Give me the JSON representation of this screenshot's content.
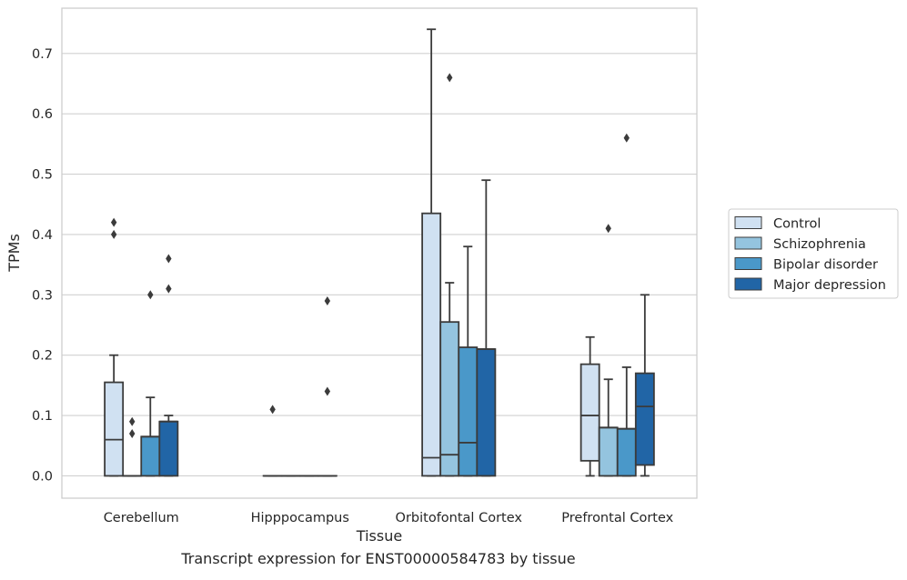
{
  "caption": "Transcript expression for ENST00000584783 by tissue",
  "chart_data": {
    "type": "box",
    "xlabel": "Tissue",
    "ylabel": "TPMs",
    "ylim": [
      -0.037,
      0.775
    ],
    "yticks": [
      0.0,
      0.1,
      0.2,
      0.3,
      0.4,
      0.5,
      0.6,
      0.7
    ],
    "ytick_labels": [
      "0.0",
      "0.1",
      "0.2",
      "0.3",
      "0.4",
      "0.5",
      "0.6",
      "0.7"
    ],
    "categories": [
      "Cerebellum",
      "Hipppocampus",
      "Orbitofontal Cortex",
      "Prefrontal Cortex"
    ],
    "grid": "horizontal",
    "legend_position": "right",
    "series": [
      {
        "name": "Control",
        "color": "#d0e1f2",
        "boxes": [
          {
            "whislo": 0.0,
            "q1": 0.0,
            "med": 0.06,
            "q3": 0.155,
            "whishi": 0.2,
            "fliers": [
              0.4,
              0.42
            ]
          },
          {
            "whislo": 0.0,
            "q1": 0.0,
            "med": 0.0,
            "q3": 0.0,
            "whishi": 0.0,
            "fliers": [
              0.11
            ]
          },
          {
            "whislo": 0.0,
            "q1": 0.0,
            "med": 0.03,
            "q3": 0.435,
            "whishi": 0.74,
            "fliers": []
          },
          {
            "whislo": 0.0,
            "q1": 0.025,
            "med": 0.1,
            "q3": 0.185,
            "whishi": 0.23,
            "fliers": []
          }
        ]
      },
      {
        "name": "Schizophrenia",
        "color": "#94c4df",
        "boxes": [
          {
            "whislo": 0.0,
            "q1": 0.0,
            "med": 0.0,
            "q3": 0.0,
            "whishi": 0.0,
            "fliers": [
              0.07,
              0.09
            ]
          },
          {
            "whislo": 0.0,
            "q1": 0.0,
            "med": 0.0,
            "q3": 0.0,
            "whishi": 0.0,
            "fliers": []
          },
          {
            "whislo": 0.0,
            "q1": 0.0,
            "med": 0.035,
            "q3": 0.255,
            "whishi": 0.32,
            "fliers": [
              0.66
            ]
          },
          {
            "whislo": 0.0,
            "q1": 0.0,
            "med": 0.08,
            "q3": 0.08,
            "whishi": 0.16,
            "fliers": [
              0.41
            ]
          }
        ]
      },
      {
        "name": "Bipolar disorder",
        "color": "#4a98c9",
        "boxes": [
          {
            "whislo": 0.0,
            "q1": 0.0,
            "med": 0.065,
            "q3": 0.065,
            "whishi": 0.13,
            "fliers": [
              0.3
            ]
          },
          {
            "whislo": 0.0,
            "q1": 0.0,
            "med": 0.0,
            "q3": 0.0,
            "whishi": 0.0,
            "fliers": []
          },
          {
            "whislo": 0.0,
            "q1": 0.0,
            "med": 0.055,
            "q3": 0.213,
            "whishi": 0.38,
            "fliers": []
          },
          {
            "whislo": 0.0,
            "q1": 0.0,
            "med": 0.078,
            "q3": 0.078,
            "whishi": 0.18,
            "fliers": [
              0.56
            ]
          }
        ]
      },
      {
        "name": "Major depression",
        "color": "#2165a6",
        "boxes": [
          {
            "whislo": 0.0,
            "q1": 0.0,
            "med": 0.09,
            "q3": 0.09,
            "whishi": 0.1,
            "fliers": [
              0.31,
              0.36
            ]
          },
          {
            "whislo": 0.0,
            "q1": 0.0,
            "med": 0.0,
            "q3": 0.0,
            "whishi": 0.0,
            "fliers": [
              0.14,
              0.29
            ]
          },
          {
            "whislo": 0.0,
            "q1": 0.0,
            "med": 0.21,
            "q3": 0.21,
            "whishi": 0.49,
            "fliers": []
          },
          {
            "whislo": 0.0,
            "q1": 0.018,
            "med": 0.115,
            "q3": 0.17,
            "whishi": 0.3,
            "fliers": []
          }
        ]
      }
    ]
  }
}
